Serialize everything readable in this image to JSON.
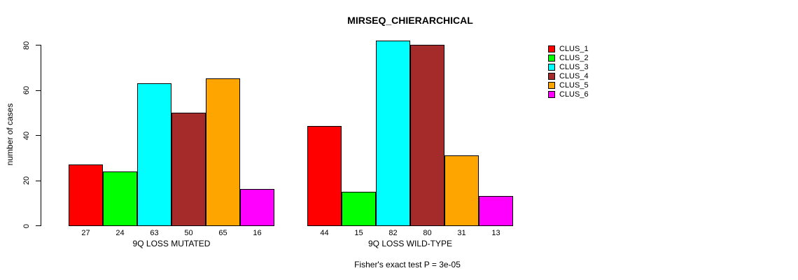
{
  "chart_data": {
    "type": "bar",
    "title": "MIRSEQ_CHIERARCHICAL",
    "xlabel": "",
    "ylabel": "number of cases",
    "ylim": [
      0,
      80
    ],
    "yticks": [
      0,
      20,
      40,
      60,
      80
    ],
    "grid": false,
    "legend_position": "right",
    "categories": [
      "9Q LOSS MUTATED",
      "9Q LOSS WILD-TYPE"
    ],
    "series": [
      {
        "name": "CLUS_1",
        "color": "#FF0000",
        "values": [
          27,
          44
        ]
      },
      {
        "name": "CLUS_2",
        "color": "#00FF00",
        "values": [
          24,
          15
        ]
      },
      {
        "name": "CLUS_3",
        "color": "#00FFFF",
        "values": [
          63,
          82
        ]
      },
      {
        "name": "CLUS_4",
        "color": "#A52A2A",
        "values": [
          50,
          80
        ]
      },
      {
        "name": "CLUS_5",
        "color": "#FFA500",
        "values": [
          65,
          31
        ]
      },
      {
        "name": "CLUS_6",
        "color": "#FF00FF",
        "values": [
          16,
          13
        ]
      }
    ],
    "bar_value_labels_shown": true,
    "annotation": "Fisher's exact test P = 3e-05",
    "axis_color": "#000000",
    "background_color": "#FFFFFF"
  }
}
